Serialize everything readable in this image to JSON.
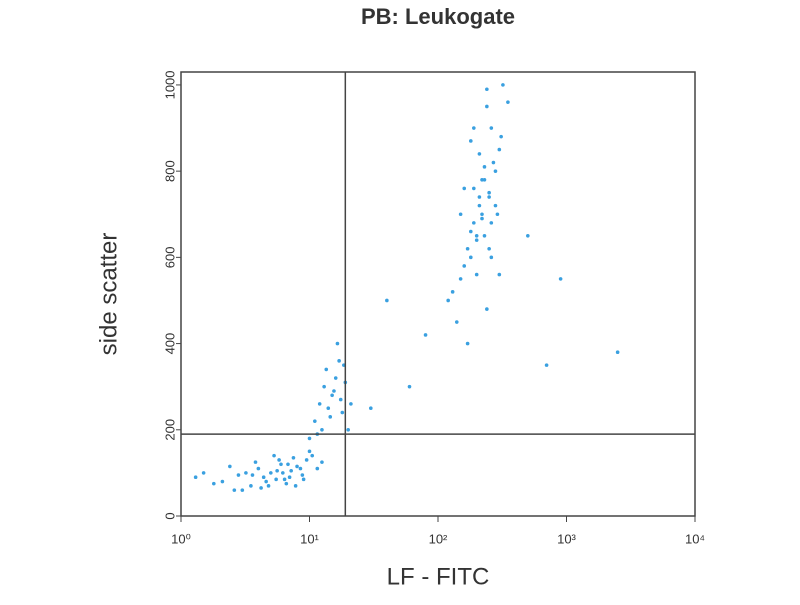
{
  "chart_data": {
    "type": "scatter",
    "title": "PB: Leukogate",
    "xlabel": "LF - FITC",
    "ylabel": "side scatter",
    "color": "#3aa0e0",
    "xscale": "log",
    "xlim": [
      1,
      10000
    ],
    "ylim": [
      0,
      1030
    ],
    "xticks": [
      {
        "value": 1,
        "label": "10⁰"
      },
      {
        "value": 10,
        "label": "10¹"
      },
      {
        "value": 100,
        "label": "10²"
      },
      {
        "value": 1000,
        "label": "10³"
      },
      {
        "value": 10000,
        "label": "10⁴"
      }
    ],
    "yticks": [
      0,
      200,
      400,
      600,
      800,
      1000
    ],
    "quadrant_x": 19,
    "quadrant_y": 190,
    "x": [
      2.1,
      2.8,
      3.5,
      4.0,
      4.4,
      5.0,
      5.5,
      6.0,
      6.6,
      7.2,
      8.0,
      8.8,
      9.5,
      3.0,
      3.8,
      4.6,
      5.3,
      6.2,
      7.0,
      7.8,
      8.5,
      1.5,
      1.8,
      2.4,
      3.2,
      4.2,
      5.8,
      6.8,
      9.0,
      10.5,
      11.5,
      12.5,
      3.6,
      4.8,
      5.6,
      6.4,
      7.5,
      2.6,
      1.3,
      10.0,
      10,
      11,
      12,
      13,
      14,
      15,
      16,
      17,
      18,
      12.5,
      13.5,
      14.5,
      15.5,
      16.5,
      17.5,
      11.5,
      19,
      18.5,
      20,
      21,
      120,
      150,
      180,
      200,
      220,
      250,
      280,
      300,
      170,
      190,
      210,
      230,
      260,
      240,
      160,
      140,
      130,
      200,
      220,
      250,
      180,
      270,
      310,
      350,
      150,
      190,
      230,
      260,
      290,
      210,
      170,
      240,
      200,
      280,
      320,
      230,
      190,
      250,
      160,
      300,
      220,
      180,
      260,
      210,
      240,
      40,
      60,
      30,
      500,
      700,
      900,
      80,
      2500
    ],
    "y": [
      80,
      95,
      70,
      110,
      90,
      100,
      85,
      120,
      75,
      105,
      115,
      95,
      130,
      60,
      125,
      80,
      140,
      100,
      90,
      70,
      110,
      100,
      75,
      115,
      100,
      65,
      130,
      120,
      85,
      140,
      110,
      125,
      95,
      70,
      105,
      85,
      135,
      60,
      90,
      150,
      180,
      220,
      260,
      300,
      250,
      280,
      320,
      360,
      240,
      200,
      340,
      230,
      290,
      400,
      270,
      190,
      310,
      350,
      200,
      260,
      500,
      550,
      600,
      650,
      700,
      750,
      800,
      850,
      620,
      680,
      720,
      780,
      900,
      950,
      580,
      450,
      520,
      640,
      690,
      740,
      660,
      820,
      880,
      960,
      700,
      760,
      810,
      600,
      700,
      840,
      400,
      480,
      560,
      720,
      1000,
      650,
      900,
      620,
      760,
      560,
      780,
      870,
      680,
      740,
      990,
      500,
      300,
      250,
      650,
      350,
      550,
      420,
      380
    ]
  }
}
